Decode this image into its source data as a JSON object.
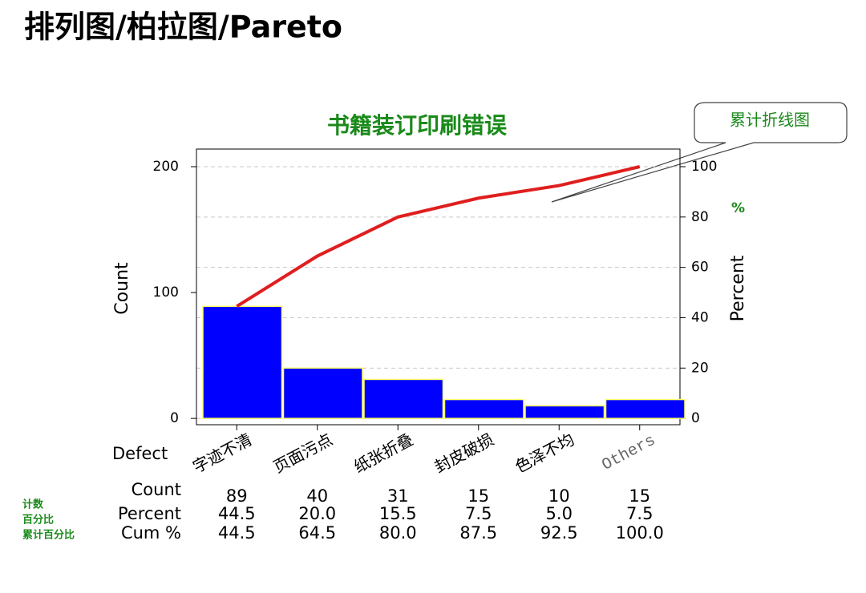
{
  "slide_title": "排列图/柏拉图/Pareto",
  "callout": "累计折线图",
  "percent_symbol": "%",
  "row_notes": [
    "计数",
    "百分比",
    "累计百分比"
  ],
  "chart_data": {
    "type": "pareto",
    "title": "书籍装订印刷错误",
    "x_label": "Defect",
    "y_label": "Count",
    "y2_label": "Percent",
    "categories": [
      "字迹不清",
      "页面污点",
      "纸张折叠",
      "封皮破损",
      "色泽不均",
      "Others"
    ],
    "series": [
      {
        "name": "Count",
        "color": "#0000ff",
        "values": [
          89,
          40,
          31,
          15,
          10,
          15
        ]
      },
      {
        "name": "Cum %",
        "color": "#e01e1e",
        "axis": "y2",
        "values": [
          44.5,
          64.5,
          80,
          87.5,
          92.5,
          100
        ],
        "value_labels": [
          "44.5",
          "64.5",
          "80.0",
          "87.5",
          "92.5",
          "100.0"
        ]
      }
    ],
    "percent": {
      "name": "Percent",
      "values": [
        44.5,
        20,
        15.5,
        7.5,
        5,
        7.5
      ],
      "value_labels": [
        "44.5",
        "20.0",
        "15.5",
        "7.5",
        "5.0",
        "7.5"
      ]
    },
    "ylim": [
      -5,
      214
    ],
    "yticks": [
      0,
      100,
      200
    ],
    "y2lim": [
      -2.5,
      107
    ],
    "y2ticks": [
      0,
      20,
      40,
      60,
      80,
      100
    ],
    "grid": true
  }
}
